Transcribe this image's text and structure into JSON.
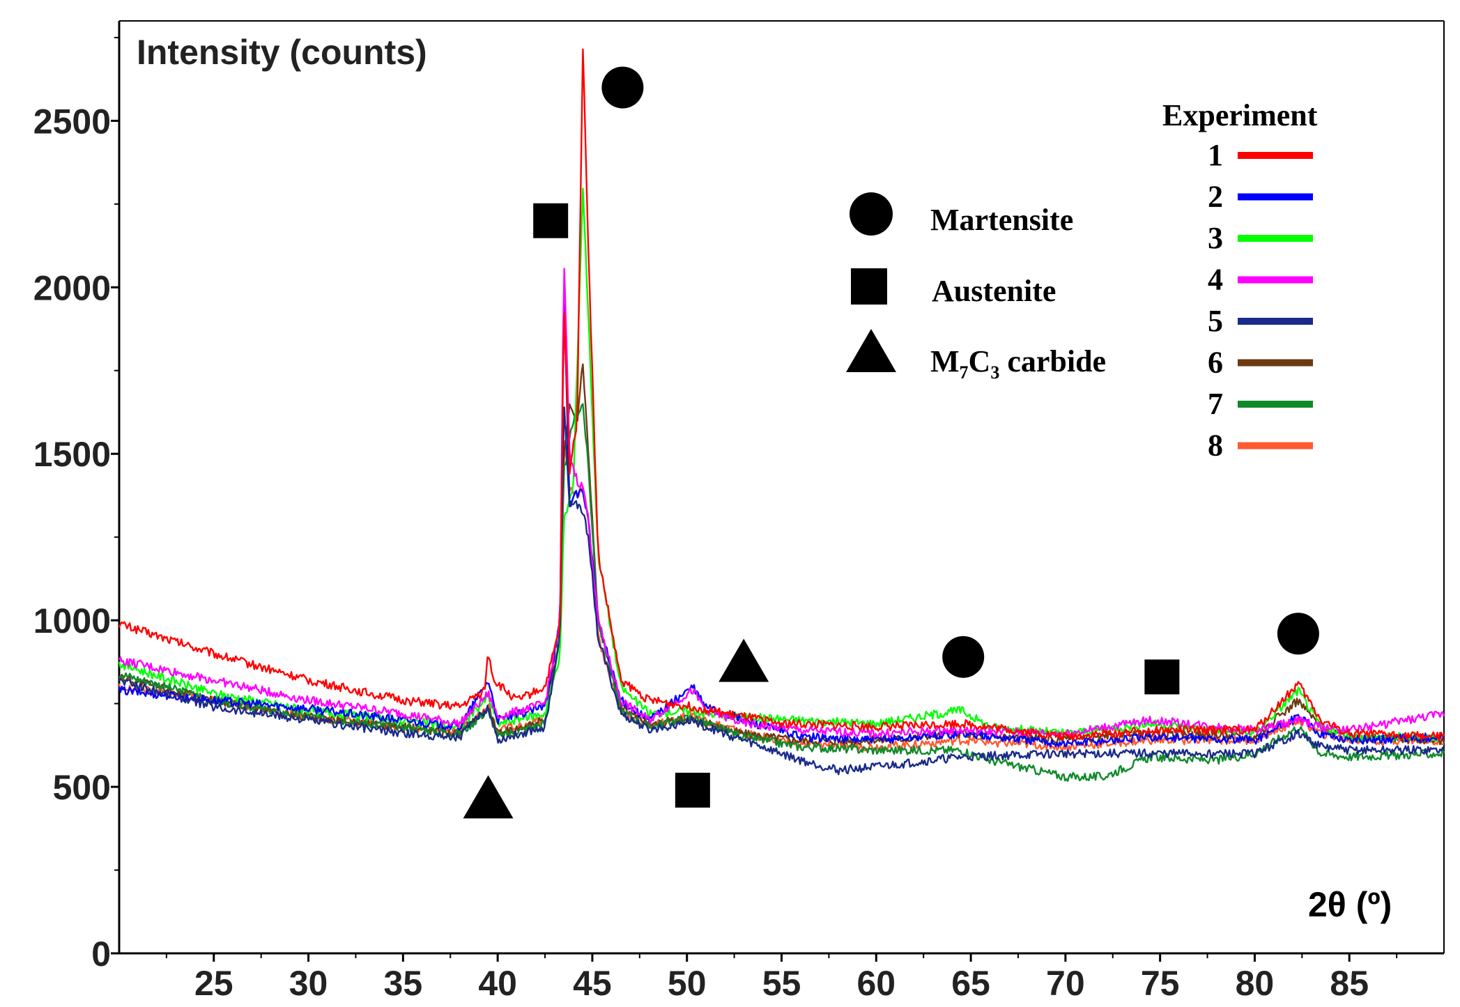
{
  "chart_data": {
    "type": "line",
    "title": "",
    "ylabel": "Intensity (counts)",
    "xlabel": "2θ (º)",
    "xlim": [
      20,
      90
    ],
    "ylim": [
      0,
      2800
    ],
    "x_ticks": [
      25,
      30,
      35,
      40,
      45,
      50,
      55,
      60,
      65,
      70,
      75,
      80,
      85
    ],
    "y_ticks": [
      0,
      500,
      1000,
      1500,
      2000,
      2500
    ],
    "legend_title": "Experiment",
    "legend_position": "top-right",
    "series": [
      {
        "name": "1",
        "color": "#ff0000",
        "points": [
          [
            20,
            990
          ],
          [
            25,
            900
          ],
          [
            30,
            820
          ],
          [
            35,
            760
          ],
          [
            38,
            740
          ],
          [
            39.3,
            790
          ],
          [
            39.5,
            905
          ],
          [
            39.8,
            820
          ],
          [
            41,
            760
          ],
          [
            42.5,
            800
          ],
          [
            43.3,
            980
          ],
          [
            43.5,
            1950
          ],
          [
            43.8,
            1450
          ],
          [
            44.2,
            1600
          ],
          [
            44.5,
            2720
          ],
          [
            44.8,
            2100
          ],
          [
            45.3,
            1200
          ],
          [
            46.5,
            820
          ],
          [
            48,
            760
          ],
          [
            50.3,
            740
          ],
          [
            52,
            720
          ],
          [
            55,
            690
          ],
          [
            60,
            680
          ],
          [
            64.5,
            690
          ],
          [
            70,
            650
          ],
          [
            74.5,
            670
          ],
          [
            80,
            670
          ],
          [
            82.3,
            810
          ],
          [
            83.5,
            700
          ],
          [
            85,
            660
          ],
          [
            90,
            650
          ]
        ]
      },
      {
        "name": "2",
        "color": "#0000ff",
        "points": [
          [
            20,
            790
          ],
          [
            25,
            760
          ],
          [
            30,
            735
          ],
          [
            35,
            700
          ],
          [
            38,
            680
          ],
          [
            39.5,
            820
          ],
          [
            40,
            700
          ],
          [
            42.5,
            740
          ],
          [
            43.3,
            1000
          ],
          [
            43.5,
            2000
          ],
          [
            43.8,
            1350
          ],
          [
            44.2,
            1380
          ],
          [
            44.5,
            1390
          ],
          [
            44.8,
            1300
          ],
          [
            45.3,
            1000
          ],
          [
            46.5,
            760
          ],
          [
            48,
            700
          ],
          [
            50.3,
            800
          ],
          [
            51,
            740
          ],
          [
            53,
            700
          ],
          [
            56,
            650
          ],
          [
            60,
            640
          ],
          [
            64.5,
            660
          ],
          [
            70,
            630
          ],
          [
            74.5,
            650
          ],
          [
            80,
            640
          ],
          [
            82.3,
            710
          ],
          [
            83.5,
            660
          ],
          [
            85,
            640
          ],
          [
            90,
            650
          ]
        ]
      },
      {
        "name": "3",
        "color": "#00ff00",
        "points": [
          [
            20,
            870
          ],
          [
            25,
            780
          ],
          [
            30,
            730
          ],
          [
            35,
            700
          ],
          [
            38,
            680
          ],
          [
            39.5,
            770
          ],
          [
            40,
            690
          ],
          [
            42.5,
            720
          ],
          [
            43.3,
            900
          ],
          [
            43.5,
            1300
          ],
          [
            44,
            1400
          ],
          [
            44.5,
            2300
          ],
          [
            44.8,
            1900
          ],
          [
            45.3,
            1200
          ],
          [
            46.5,
            800
          ],
          [
            48,
            720
          ],
          [
            50.3,
            730
          ],
          [
            51,
            720
          ],
          [
            53,
            710
          ],
          [
            56,
            700
          ],
          [
            60,
            690
          ],
          [
            64.5,
            730
          ],
          [
            66,
            680
          ],
          [
            70,
            660
          ],
          [
            74.5,
            690
          ],
          [
            80,
            660
          ],
          [
            82.3,
            790
          ],
          [
            83.5,
            680
          ],
          [
            85,
            650
          ],
          [
            90,
            650
          ]
        ]
      },
      {
        "name": "4",
        "color": "#ff00ff",
        "points": [
          [
            20,
            880
          ],
          [
            25,
            820
          ],
          [
            30,
            760
          ],
          [
            35,
            720
          ],
          [
            38,
            690
          ],
          [
            39.5,
            780
          ],
          [
            40,
            710
          ],
          [
            42.5,
            750
          ],
          [
            43.3,
            1000
          ],
          [
            43.5,
            2100
          ],
          [
            43.8,
            1500
          ],
          [
            44.2,
            1420
          ],
          [
            44.5,
            1400
          ],
          [
            44.8,
            1300
          ],
          [
            45.3,
            1000
          ],
          [
            46.5,
            760
          ],
          [
            48,
            700
          ],
          [
            50.3,
            790
          ],
          [
            51,
            730
          ],
          [
            53,
            690
          ],
          [
            56,
            670
          ],
          [
            60,
            660
          ],
          [
            64.5,
            670
          ],
          [
            70,
            660
          ],
          [
            74.5,
            700
          ],
          [
            80,
            670
          ],
          [
            82.3,
            700
          ],
          [
            83.5,
            680
          ],
          [
            85,
            670
          ],
          [
            90,
            720
          ]
        ]
      },
      {
        "name": "5",
        "color": "#1a2a8a",
        "points": [
          [
            20,
            820
          ],
          [
            25,
            740
          ],
          [
            30,
            700
          ],
          [
            35,
            660
          ],
          [
            38,
            650
          ],
          [
            39.5,
            740
          ],
          [
            40,
            640
          ],
          [
            42.5,
            680
          ],
          [
            43.3,
            950
          ],
          [
            43.5,
            1650
          ],
          [
            43.8,
            1350
          ],
          [
            44.2,
            1350
          ],
          [
            44.5,
            1320
          ],
          [
            44.8,
            1250
          ],
          [
            45.3,
            950
          ],
          [
            46.5,
            720
          ],
          [
            48,
            670
          ],
          [
            50.3,
            700
          ],
          [
            51,
            680
          ],
          [
            53,
            640
          ],
          [
            56,
            580
          ],
          [
            58,
            550
          ],
          [
            60,
            560
          ],
          [
            64.5,
            590
          ],
          [
            70,
            600
          ],
          [
            74.5,
            600
          ],
          [
            80,
            600
          ],
          [
            82.3,
            660
          ],
          [
            83.5,
            620
          ],
          [
            85,
            610
          ],
          [
            90,
            610
          ]
        ]
      },
      {
        "name": "6",
        "color": "#6b3a10",
        "points": [
          [
            20,
            830
          ],
          [
            25,
            760
          ],
          [
            30,
            710
          ],
          [
            35,
            680
          ],
          [
            38,
            660
          ],
          [
            39.5,
            740
          ],
          [
            40,
            660
          ],
          [
            42.5,
            700
          ],
          [
            43.3,
            950
          ],
          [
            43.5,
            1500
          ],
          [
            43.8,
            1650
          ],
          [
            44.2,
            1600
          ],
          [
            44.5,
            1770
          ],
          [
            44.8,
            1500
          ],
          [
            45.3,
            1000
          ],
          [
            46.5,
            740
          ],
          [
            48,
            690
          ],
          [
            50.3,
            700
          ],
          [
            51,
            690
          ],
          [
            53,
            660
          ],
          [
            56,
            640
          ],
          [
            60,
            640
          ],
          [
            64.5,
            660
          ],
          [
            70,
            640
          ],
          [
            74.5,
            660
          ],
          [
            80,
            650
          ],
          [
            82.3,
            760
          ],
          [
            83.5,
            680
          ],
          [
            85,
            650
          ],
          [
            90,
            640
          ]
        ]
      },
      {
        "name": "7",
        "color": "#0f8a2a",
        "points": [
          [
            20,
            840
          ],
          [
            25,
            760
          ],
          [
            30,
            710
          ],
          [
            35,
            680
          ],
          [
            38,
            660
          ],
          [
            39.5,
            730
          ],
          [
            40,
            650
          ],
          [
            42.5,
            690
          ],
          [
            43.3,
            950
          ],
          [
            43.5,
            1450
          ],
          [
            44,
            1600
          ],
          [
            44.5,
            1650
          ],
          [
            44.8,
            1450
          ],
          [
            45.3,
            1000
          ],
          [
            46.5,
            730
          ],
          [
            48,
            680
          ],
          [
            50.3,
            710
          ],
          [
            51,
            690
          ],
          [
            53,
            650
          ],
          [
            56,
            620
          ],
          [
            60,
            610
          ],
          [
            64.5,
            610
          ],
          [
            66,
            580
          ],
          [
            70,
            530
          ],
          [
            72,
            530
          ],
          [
            74.5,
            590
          ],
          [
            78,
            580
          ],
          [
            80,
            600
          ],
          [
            82.3,
            680
          ],
          [
            83.5,
            600
          ],
          [
            85,
            590
          ],
          [
            90,
            600
          ]
        ]
      },
      {
        "name": "8",
        "color": "#ff5a30",
        "points": [
          [
            20,
            800
          ],
          [
            25,
            760
          ],
          [
            30,
            710
          ],
          [
            35,
            680
          ],
          [
            38,
            670
          ],
          [
            39.5,
            740
          ],
          [
            40,
            670
          ],
          [
            42.5,
            700
          ],
          [
            43.3,
            960
          ],
          [
            43.5,
            1550
          ],
          [
            43.8,
            1400
          ],
          [
            44.2,
            1380
          ],
          [
            44.5,
            1400
          ],
          [
            44.8,
            1300
          ],
          [
            45.3,
            950
          ],
          [
            46.5,
            730
          ],
          [
            48,
            680
          ],
          [
            50.3,
            720
          ],
          [
            51,
            700
          ],
          [
            53,
            660
          ],
          [
            56,
            630
          ],
          [
            60,
            620
          ],
          [
            64.5,
            640
          ],
          [
            70,
            620
          ],
          [
            74.5,
            640
          ],
          [
            80,
            640
          ],
          [
            82.3,
            700
          ],
          [
            83.5,
            660
          ],
          [
            85,
            640
          ],
          [
            90,
            640
          ]
        ]
      }
    ],
    "annotations": [
      {
        "marker": "circle",
        "x": 46.6,
        "y": 2600
      },
      {
        "marker": "square",
        "x": 42.8,
        "y": 2200
      },
      {
        "marker": "triangle",
        "x": 39.5,
        "y": 470
      },
      {
        "marker": "square",
        "x": 50.3,
        "y": 490
      },
      {
        "marker": "triangle",
        "x": 53.0,
        "y": 880
      },
      {
        "marker": "circle",
        "x": 64.6,
        "y": 890
      },
      {
        "marker": "square",
        "x": 75.1,
        "y": 830
      },
      {
        "marker": "circle",
        "x": 82.3,
        "y": 960
      }
    ],
    "phase_legend": [
      {
        "marker": "circle",
        "label": "Martensite"
      },
      {
        "marker": "square",
        "label": "Austenite"
      },
      {
        "marker": "triangle",
        "label": "M",
        "sub1": "7",
        "mid": "C",
        "sub2": "3",
        "tail": " carbide"
      }
    ]
  }
}
